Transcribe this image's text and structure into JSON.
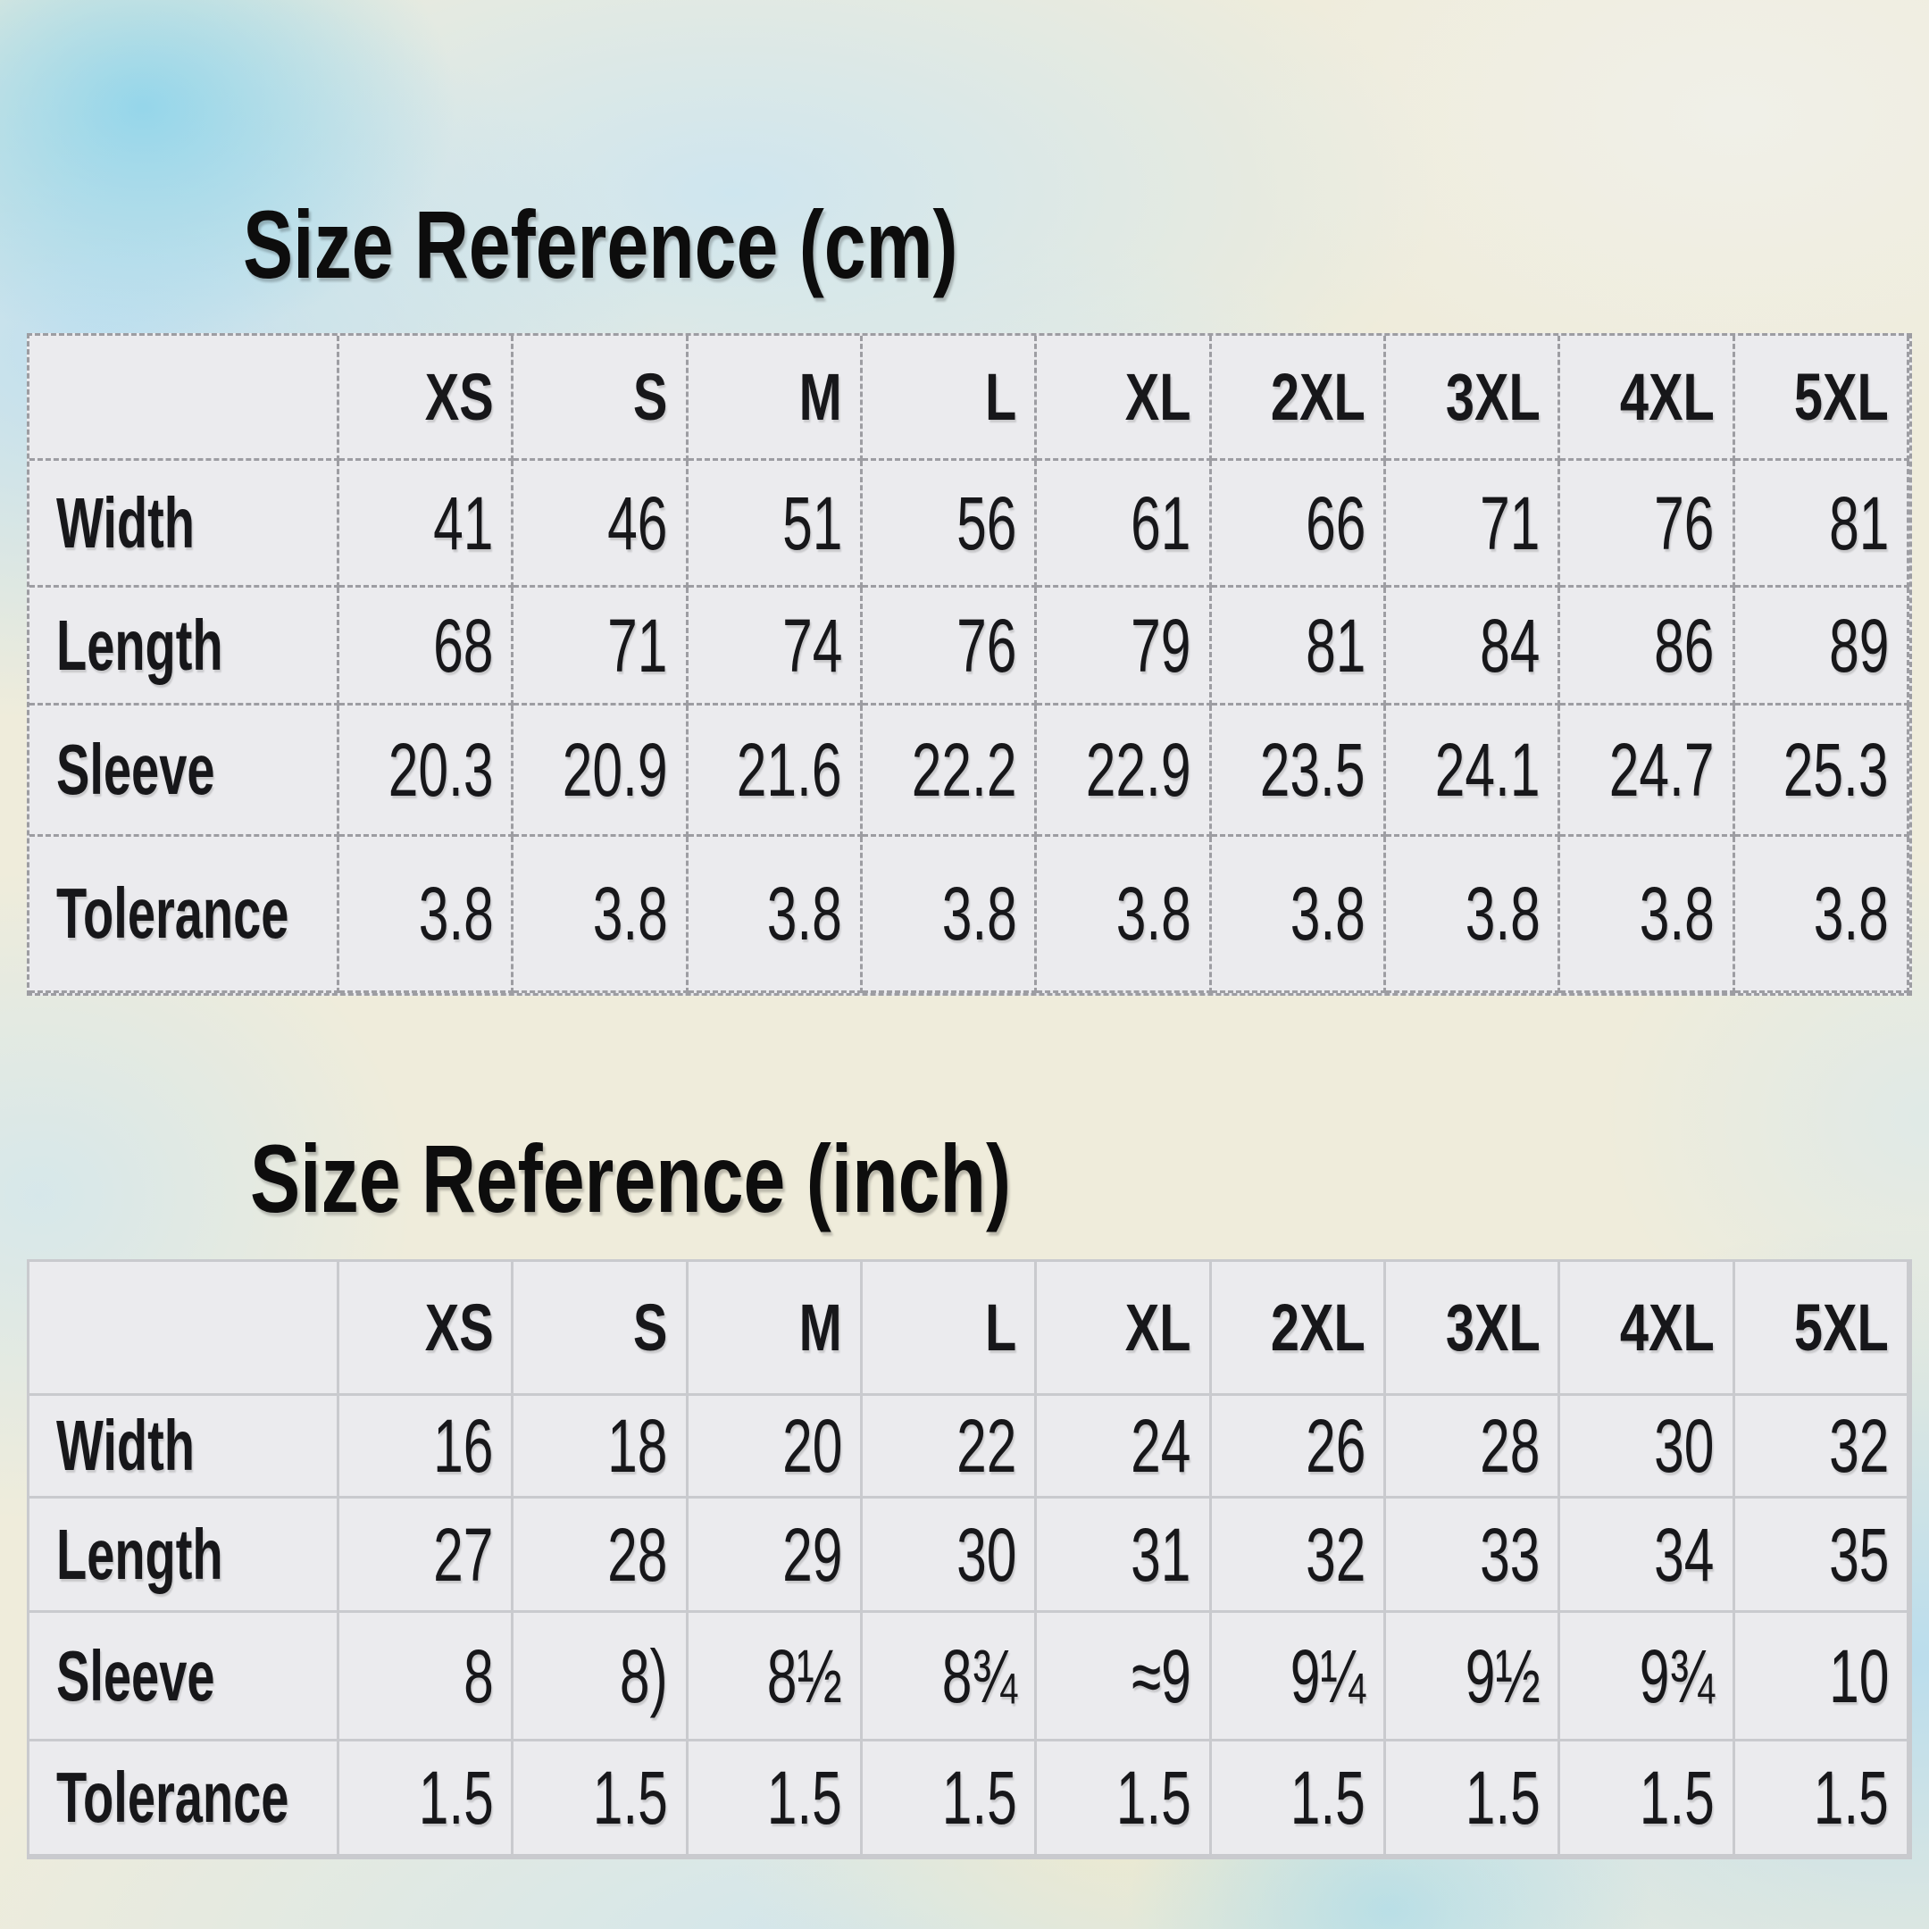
{
  "page": {
    "colors": {
      "paper_cream": "#efecdb",
      "watercolor_blue": "#badef2",
      "watercolor_turquoise": "#89d3eb",
      "cell_background": "#ebebee",
      "dashed_border": "#9d9da2",
      "solid_border": "#c9cace",
      "text": "#17171a"
    }
  },
  "tables": [
    {
      "title": "Size Reference (cm)",
      "border_style": "dashed",
      "columns": [
        "XS",
        "S",
        "M",
        "L",
        "XL",
        "2XL",
        "3XL",
        "4XL",
        "5XL"
      ],
      "rows": [
        {
          "label": "Width",
          "values": [
            "41",
            "46",
            "51",
            "56",
            "61",
            "66",
            "71",
            "76",
            "81"
          ]
        },
        {
          "label": "Length",
          "values": [
            "68",
            "71",
            "74",
            "76",
            "79",
            "81",
            "84",
            "86",
            "89"
          ]
        },
        {
          "label": "Sleeve",
          "values": [
            "20.3",
            "20.9",
            "21.6",
            "22.2",
            "22.9",
            "23.5",
            "24.1",
            "24.7",
            "25.3"
          ]
        },
        {
          "label": "Tolerance",
          "values": [
            "3.8",
            "3.8",
            "3.8",
            "3.8",
            "3.8",
            "3.8",
            "3.8",
            "3.8",
            "3.8"
          ]
        }
      ]
    },
    {
      "title": "Size Reference (inch)",
      "border_style": "solid",
      "columns": [
        "XS",
        "S",
        "M",
        "L",
        "XL",
        "2XL",
        "3XL",
        "4XL",
        "5XL"
      ],
      "rows": [
        {
          "label": "Width",
          "values": [
            "16",
            "18",
            "20",
            "22",
            "24",
            "26",
            "28",
            "30",
            "32"
          ]
        },
        {
          "label": "Length",
          "values": [
            "27",
            "28",
            "29",
            "30",
            "31",
            "32",
            "33",
            "34",
            "35"
          ]
        },
        {
          "label": "Sleeve",
          "values": [
            "8",
            "8)",
            "8½",
            "8¾",
            "≈9",
            "9¼",
            "9½",
            "9¾",
            "10"
          ]
        },
        {
          "label": "Tolerance",
          "values": [
            "1.5",
            "1.5",
            "1.5",
            "1.5",
            "1.5",
            "1.5",
            "1.5",
            "1.5",
            "1.5"
          ]
        }
      ]
    }
  ]
}
